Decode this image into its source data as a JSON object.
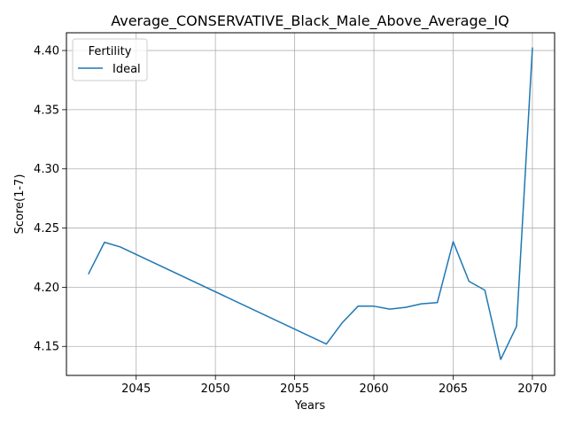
{
  "chart_data": {
    "type": "line",
    "title": "Average_CONSERVATIVE_Black_Male_Above_Average_IQ",
    "xlabel": "Years",
    "ylabel": "Score(1-7)",
    "xlim": [
      2040.6,
      2071.4
    ],
    "ylim": [
      4.1255,
      4.415
    ],
    "x_ticks": [
      2045,
      2050,
      2055,
      2060,
      2065,
      2070
    ],
    "y_ticks": [
      4.15,
      4.2,
      4.25,
      4.3,
      4.35,
      4.4
    ],
    "x_tick_labels": [
      "2045",
      "2050",
      "2055",
      "2060",
      "2065",
      "2070"
    ],
    "y_tick_labels": [
      "4.15",
      "4.20",
      "4.25",
      "4.30",
      "4.35",
      "4.40"
    ],
    "grid": true,
    "legend": {
      "title": "Fertility",
      "placement": "top-left"
    },
    "series": [
      {
        "name": "Ideal",
        "color": "#1f77b4",
        "x": [
          2042,
          2043,
          2044,
          2057,
          2058,
          2059,
          2060,
          2061,
          2062,
          2063,
          2064,
          2065,
          2066,
          2067,
          2068,
          2069,
          2070
        ],
        "y": [
          4.2115,
          4.238,
          4.234,
          4.152,
          4.17,
          4.184,
          4.184,
          4.1815,
          4.183,
          4.186,
          4.187,
          4.2385,
          4.205,
          4.1975,
          4.139,
          4.167,
          4.402
        ]
      }
    ]
  }
}
